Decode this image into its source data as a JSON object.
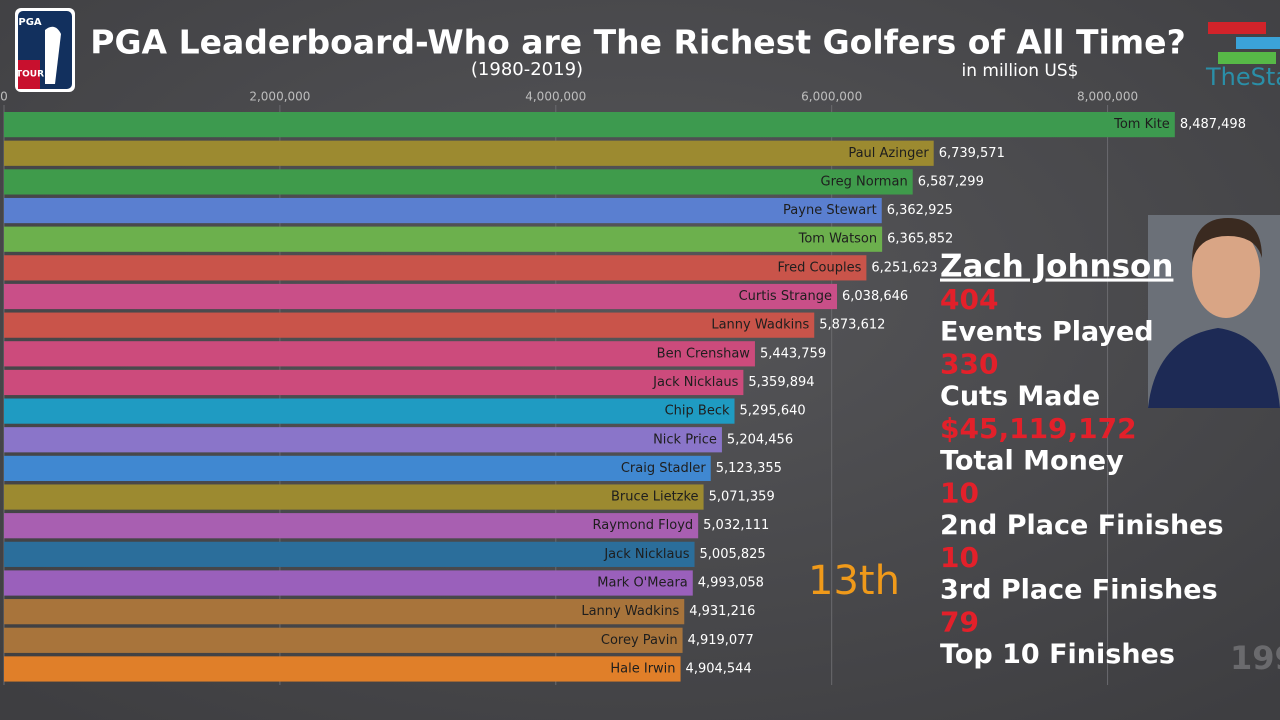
{
  "chart_data": {
    "type": "bar",
    "orientation": "horizontal",
    "title": "PGA Leaderboard-Who are The Richest Golfers of All Time?",
    "subtitle": "(1980-2019)",
    "unit_note": "in million US$",
    "categories": [
      "Tom Kite",
      "Paul Azinger",
      "Greg Norman",
      "Payne Stewart",
      "Tom Watson",
      "Fred Couples",
      "Curtis Strange",
      "Lanny Wadkins",
      "Ben Crenshaw",
      "Jack Nicklaus",
      "Chip Beck",
      "Nick Price",
      "Craig Stadler",
      "Bruce Lietzke",
      "Raymond Floyd",
      "Jack Nicklaus",
      "Mark O'Meara",
      "Lanny Wadkins",
      "Corey Pavin",
      "Hale Irwin"
    ],
    "values": [
      8487498,
      6739571,
      6587299,
      6362925,
      6365852,
      6251623,
      6038646,
      5873612,
      5443759,
      5359894,
      5295640,
      5204456,
      5123355,
      5071359,
      5032111,
      5005825,
      4993058,
      4931216,
      4919077,
      4904544
    ],
    "value_labels": [
      "8,487,498",
      "6,739,571",
      "6,587,299",
      "6,362,925",
      "6,365,852",
      "6,251,623",
      "6,038,646",
      "5,873,612",
      "5,443,759",
      "5,359,894",
      "5,295,640",
      "5,204,456",
      "5,123,355",
      "5,071,359",
      "5,032,111",
      "5,005,825",
      "4,993,058",
      "4,931,216",
      "4,919,077",
      "4,904,544"
    ],
    "colors": [
      "#3d9a4f",
      "#9c8a30",
      "#3f9b4b",
      "#5a7fd0",
      "#6cb04d",
      "#c9544a",
      "#c94f88",
      "#c9544a",
      "#cc4b7c",
      "#cc4b7c",
      "#1f9bc2",
      "#8a75c9",
      "#4088d1",
      "#9c8a30",
      "#a85fb1",
      "#2b6e9b",
      "#9a60bb",
      "#a8743b",
      "#a8743b",
      "#e07f29"
    ],
    "xlim": [
      0,
      9250000
    ],
    "xticks": [
      0,
      {
        "value": 2000000,
        "label": "2,000,000"
      },
      {
        "value": 4000000,
        "label": "4,000,000"
      },
      {
        "value": 6000000,
        "label": "6,000,000"
      },
      {
        "value": 8000000,
        "label": "8,000,000"
      }
    ],
    "grid": true,
    "rank": "13th",
    "year": "199"
  },
  "player_card": {
    "name": "Zach Johnson",
    "stats": [
      {
        "value": "404",
        "label": "Events Played"
      },
      {
        "value": "330",
        "label": "Cuts Made"
      },
      {
        "value": "$45,119,172",
        "label": "Total Money"
      },
      {
        "value": "10",
        "label": "2nd Place Finishes"
      },
      {
        "value": "10",
        "label": "3rd Place Finishes"
      },
      {
        "value": "79",
        "label": "Top 10 Finishes"
      }
    ]
  },
  "logos": {
    "pga_top": "PGA",
    "pga_bottom": "TOUR",
    "brand": "TheSta"
  }
}
